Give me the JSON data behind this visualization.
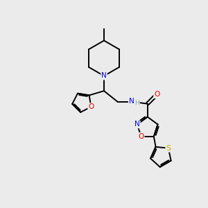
{
  "bg_color": "#ebebeb",
  "bond_color": "#000000",
  "N_color": "#0000ee",
  "O_color": "#ee0000",
  "S_color": "#ccaa00",
  "H_color": "#7aada8",
  "line_width": 1.4,
  "figsize": [
    3.0,
    3.0
  ],
  "dpi": 100,
  "xlim": [
    0,
    10
  ],
  "ylim": [
    0,
    10
  ]
}
